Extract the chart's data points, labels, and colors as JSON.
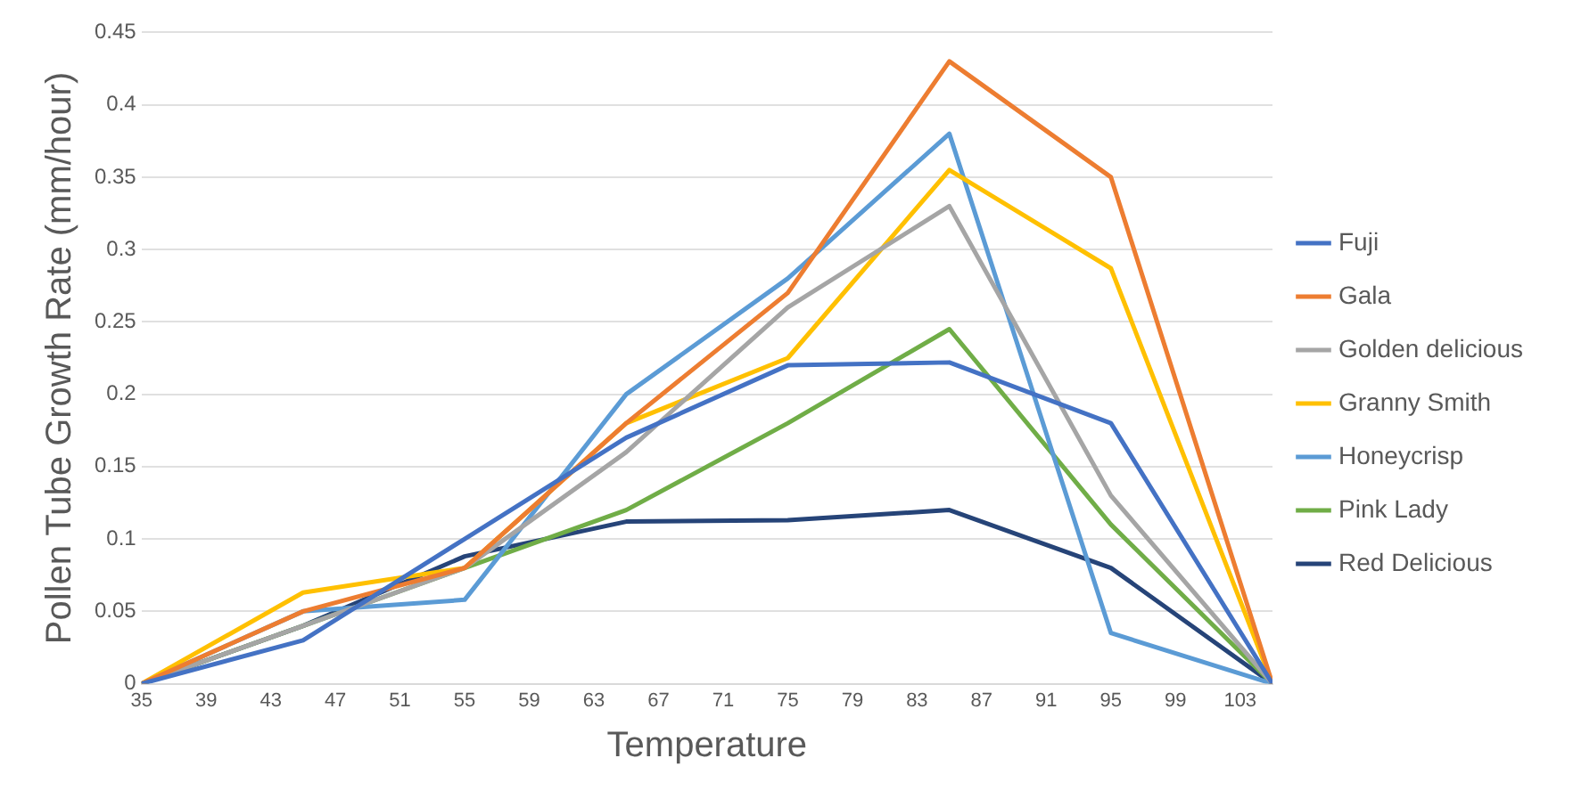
{
  "chart_data": {
    "type": "line",
    "xlabel": "Temperature",
    "ylabel": "Pollen Tube Growth Rate (mm/hour)",
    "x": [
      35,
      45,
      55,
      65,
      75,
      85,
      95,
      105
    ],
    "series": [
      {
        "name": "Fuji",
        "color": "#4472c4",
        "values": [
          0,
          0.03,
          0.1,
          0.17,
          0.22,
          0.222,
          0.18,
          0
        ]
      },
      {
        "name": "Gala",
        "color": "#ed7d31",
        "values": [
          0,
          0.05,
          0.08,
          0.18,
          0.27,
          0.43,
          0.35,
          0
        ]
      },
      {
        "name": "Golden delicious",
        "color": "#a5a5a5",
        "values": [
          0,
          0.04,
          0.08,
          0.16,
          0.26,
          0.33,
          0.13,
          0
        ]
      },
      {
        "name": "Granny Smith",
        "color": "#ffc000",
        "values": [
          0,
          0.063,
          0.08,
          0.18,
          0.225,
          0.355,
          0.287,
          0
        ]
      },
      {
        "name": "Honeycrisp",
        "color": "#5b9bd5",
        "values": [
          0,
          0.05,
          0.058,
          0.2,
          0.28,
          0.38,
          0.035,
          0
        ]
      },
      {
        "name": "Pink Lady",
        "color": "#70ad47",
        "values": [
          0,
          0.04,
          0.08,
          0.12,
          0.18,
          0.245,
          0.11,
          0
        ]
      },
      {
        "name": "Red Delicious",
        "color": "#264478",
        "values": [
          0,
          0.04,
          0.088,
          0.112,
          0.113,
          0.12,
          0.08,
          0
        ]
      }
    ],
    "xlim": [
      35,
      105
    ],
    "xticks": [
      35,
      39,
      43,
      47,
      51,
      55,
      59,
      63,
      67,
      71,
      75,
      79,
      83,
      87,
      91,
      95,
      99,
      103
    ],
    "ylim": [
      0,
      0.45
    ],
    "yticks": [
      0,
      0.05,
      0.1,
      0.15,
      0.2,
      0.25,
      0.3,
      0.35,
      0.4,
      0.45
    ],
    "grid": "y",
    "legend": "right",
    "marker": "none",
    "line_style": "solid"
  }
}
